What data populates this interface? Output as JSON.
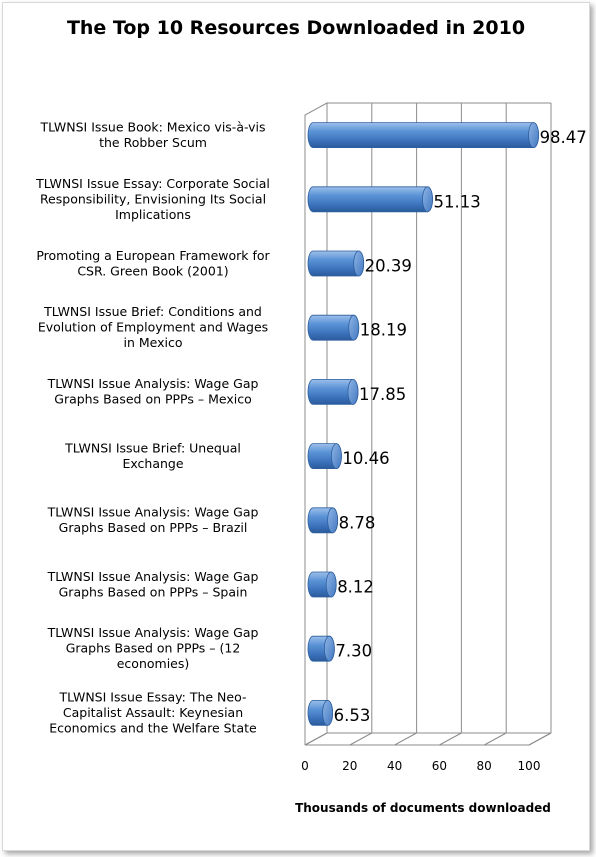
{
  "chart_data": {
    "type": "bar",
    "orientation": "horizontal",
    "style": "3d-cylinder",
    "title": "The Top 10 Resources Downloaded in 2010",
    "xlabel": "Thousands of documents downloaded",
    "ylabel": "",
    "xlim": [
      0,
      100
    ],
    "xticks": [
      0,
      20,
      40,
      60,
      80,
      100
    ],
    "xtick_labels": [
      "0",
      "20",
      "40",
      "60",
      "80",
      "100"
    ],
    "grid": true,
    "bar_color": "#4a82c8",
    "categories": [
      "TLWNSI Issue Book:  Mexico vis-à-vis the Robber Scum",
      "TLWNSI Issue Essay:  Corporate Social Responsibility, Envisioning Its Social Implications",
      "Promoting a European Framework for CSR.  Green Book  (2001)",
      "TLWNSI Issue Brief:  Conditions and Evolution of Employment and Wages in Mexico",
      "TLWNSI Issue Analysis:  Wage Gap Graphs Based on PPPs – Mexico",
      "TLWNSI Issue Brief: Unequal Exchange",
      "TLWNSI Issue Analysis:  Wage Gap Graphs Based on PPPs – Brazil",
      "TLWNSI Issue Analysis:  Wage Gap Graphs Based on PPPs – Spain",
      "TLWNSI Issue Analysis:  Wage Gap Graphs Based on PPPs – (12 economies)",
      "TLWNSI Issue Essay:  The Neo-Capitalist Assault: Keynesian Economics and the Welfare State"
    ],
    "category_lines": [
      [
        "TLWNSI Issue Book:  Mexico vis-à-vis",
        "the Robber Scum"
      ],
      [
        "TLWNSI Issue Essay:  Corporate Social",
        "Responsibility, Envisioning Its Social",
        "Implications"
      ],
      [
        "Promoting a European Framework for",
        "CSR.  Green Book  (2001)"
      ],
      [
        "TLWNSI Issue Brief:  Conditions and",
        "Evolution of Employment and Wages",
        "in Mexico"
      ],
      [
        "TLWNSI Issue Analysis:  Wage Gap",
        "Graphs Based on PPPs – Mexico"
      ],
      [
        "TLWNSI Issue Brief: Unequal",
        "Exchange"
      ],
      [
        "TLWNSI Issue Analysis:  Wage Gap",
        "Graphs Based on PPPs – Brazil"
      ],
      [
        "TLWNSI Issue Analysis:  Wage Gap",
        "Graphs Based on PPPs – Spain"
      ],
      [
        "TLWNSI Issue Analysis:  Wage Gap",
        "Graphs Based on PPPs – (12",
        "economies)"
      ],
      [
        "TLWNSI Issue Essay:  The Neo-",
        "Capitalist Assault: Keynesian",
        "Economics and the Welfare State"
      ]
    ],
    "values": [
      98.47,
      51.13,
      20.39,
      18.19,
      17.85,
      10.46,
      8.78,
      8.12,
      7.3,
      6.53
    ],
    "value_labels": [
      "98.47",
      "51.13",
      "20.39",
      "18.19",
      "17.85",
      "10.46",
      "8.78",
      "8.12",
      "7.30",
      "6.53"
    ]
  }
}
